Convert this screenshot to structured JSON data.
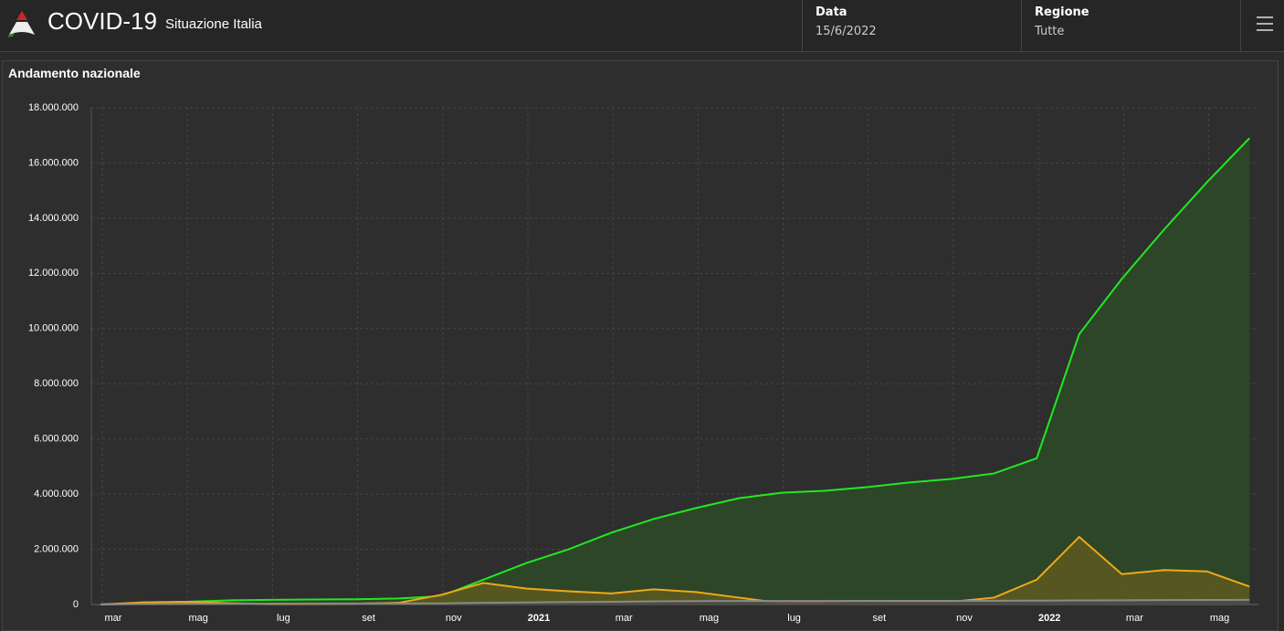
{
  "header": {
    "title": "COVID-19",
    "subtitle": "Situazione Italia",
    "date_label": "Data",
    "date_value": "15/6/2022",
    "region_label": "Regione",
    "region_value": "Tutte"
  },
  "chart_data": {
    "type": "area",
    "title": "Andamento nazionale",
    "categories": [
      "mar",
      null,
      "mag",
      null,
      "lug",
      null,
      "set",
      null,
      "nov",
      null,
      "2021",
      null,
      "mar",
      null,
      "mag",
      null,
      "lug",
      null,
      "set",
      null,
      "nov",
      null,
      "2022",
      null,
      "mar",
      null,
      "mag",
      null
    ],
    "series": [
      {
        "color": "#22e822",
        "fill": "#2d4a27",
        "values": [
          0,
          50000,
          100000,
          150000,
          170000,
          180000,
          190000,
          220000,
          300000,
          900000,
          1500000,
          2000000,
          2600000,
          3100000,
          3500000,
          3850000,
          4050000,
          4120000,
          4250000,
          4420000,
          4550000,
          4750000,
          5300000,
          9800000,
          11800000,
          13600000,
          15300000,
          16900000
        ]
      },
      {
        "color": "#f0a818",
        "fill": "#5e5a1e",
        "values": [
          0,
          80000,
          100000,
          50000,
          20000,
          20000,
          30000,
          60000,
          350000,
          780000,
          580000,
          480000,
          400000,
          550000,
          450000,
          250000,
          50000,
          80000,
          130000,
          100000,
          100000,
          250000,
          900000,
          2450000,
          1100000,
          1250000,
          1200000,
          650000
        ]
      },
      {
        "color": "#8a8a8a",
        "fill": "#4a4a4a",
        "values": [
          0,
          20000,
          30000,
          35000,
          35000,
          36000,
          36000,
          38000,
          42000,
          60000,
          75000,
          90000,
          100000,
          115000,
          125000,
          128000,
          128000,
          130000,
          131000,
          132000,
          133000,
          137000,
          140000,
          150000,
          155000,
          160000,
          165000,
          168000
        ]
      }
    ],
    "ylim": [
      0,
      18000000
    ],
    "yticks": [
      0,
      {
        "value": 2000000,
        "label": "2.000.000"
      },
      {
        "value": 4000000,
        "label": "4.000.000"
      },
      {
        "value": 6000000,
        "label": "6.000.000"
      },
      {
        "value": 8000000,
        "label": "8.000.000"
      },
      {
        "value": 10000000,
        "label": "10.000.000"
      },
      {
        "value": 12000000,
        "label": "12.000.000"
      },
      {
        "value": 14000000,
        "label": "14.000.000"
      },
      {
        "value": 16000000,
        "label": "16.000.000"
      },
      {
        "value": 18000000,
        "label": "18.000.000"
      }
    ],
    "grid": true
  }
}
